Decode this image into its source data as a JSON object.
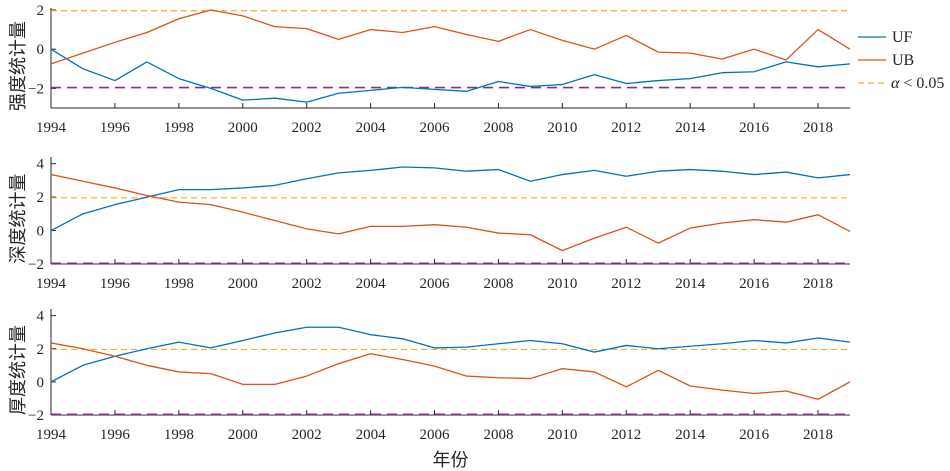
{
  "colors": {
    "uf_line": "#0072BD",
    "ub_line": "#D95319",
    "upper_threshold": "#EDB120",
    "lower_threshold": "#7E2F8E",
    "axis": "#262626"
  },
  "chart_data": [
    {
      "type": "line",
      "x": [
        1994,
        1995,
        1996,
        1997,
        1998,
        1999,
        2000,
        2001,
        2002,
        2003,
        2004,
        2005,
        2006,
        2007,
        2008,
        2009,
        2010,
        2011,
        2012,
        2013,
        2014,
        2015,
        2016,
        2017,
        2018,
        2019
      ],
      "xlim": [
        1994,
        2019
      ],
      "xticks": [
        1994,
        1996,
        1998,
        2000,
        2002,
        2004,
        2006,
        2008,
        2010,
        2012,
        2014,
        2016,
        2018
      ],
      "ylabel": "强度统计量",
      "ylim": [
        -3,
        2.1
      ],
      "yticks": [
        2,
        0,
        -2
      ],
      "ytick_labels": [
        "2",
        "0",
        "−2"
      ],
      "thresholds": {
        "upper": 1.96,
        "lower": -1.96
      },
      "grid": false,
      "legend": {
        "placement": "right",
        "threshold_label": "α < 0.05"
      },
      "series": [
        {
          "name": "UF",
          "values": [
            0,
            -1.0,
            -1.6,
            -0.65,
            -1.5,
            -2.0,
            -2.6,
            -2.5,
            -2.7,
            -2.25,
            -2.1,
            -1.95,
            -2.05,
            -2.15,
            -1.65,
            -1.9,
            -1.8,
            -1.3,
            -1.75,
            -1.6,
            -1.5,
            -1.2,
            -1.15,
            -0.65,
            -0.9,
            -0.75
          ]
        },
        {
          "name": "UB",
          "values": [
            -0.75,
            -0.2,
            0.35,
            0.85,
            1.55,
            2.0,
            1.7,
            1.15,
            1.05,
            0.5,
            1.0,
            0.85,
            1.15,
            0.75,
            0.4,
            1.0,
            0.45,
            0.0,
            0.7,
            -0.15,
            -0.2,
            -0.5,
            0.0,
            -0.55,
            1.0,
            0.0
          ]
        }
      ]
    },
    {
      "type": "line",
      "x": [
        1994,
        1995,
        1996,
        1997,
        1998,
        1999,
        2000,
        2001,
        2002,
        2003,
        2004,
        2005,
        2006,
        2007,
        2008,
        2009,
        2010,
        2011,
        2012,
        2013,
        2014,
        2015,
        2016,
        2017,
        2018,
        2019
      ],
      "xlim": [
        1994,
        2019
      ],
      "xticks": [
        1994,
        1996,
        1998,
        2000,
        2002,
        2004,
        2006,
        2008,
        2010,
        2012,
        2014,
        2016,
        2018
      ],
      "ylabel": "深度统计量",
      "ylim": [
        -2,
        4.4
      ],
      "yticks": [
        4,
        2,
        0,
        -2
      ],
      "ytick_labels": [
        "4",
        "2",
        "0",
        "−2"
      ],
      "thresholds": {
        "upper": 1.96,
        "lower": -1.96
      },
      "grid": false,
      "series": [
        {
          "name": "UF",
          "values": [
            0,
            1.0,
            1.55,
            2.0,
            2.45,
            2.45,
            2.55,
            2.7,
            3.1,
            3.45,
            3.6,
            3.8,
            3.75,
            3.55,
            3.65,
            2.95,
            3.35,
            3.6,
            3.25,
            3.55,
            3.65,
            3.55,
            3.35,
            3.5,
            3.15,
            3.35
          ]
        },
        {
          "name": "UB",
          "values": [
            3.35,
            2.95,
            2.55,
            2.1,
            1.7,
            1.55,
            1.1,
            0.6,
            0.1,
            -0.2,
            0.25,
            0.25,
            0.35,
            0.2,
            -0.15,
            -0.25,
            -1.2,
            -0.45,
            0.2,
            -0.75,
            0.15,
            0.45,
            0.65,
            0.5,
            0.95,
            -0.05
          ]
        }
      ]
    },
    {
      "type": "line",
      "x": [
        1994,
        1995,
        1996,
        1997,
        1998,
        1999,
        2000,
        2001,
        2002,
        2003,
        2004,
        2005,
        2006,
        2007,
        2008,
        2009,
        2010,
        2011,
        2012,
        2013,
        2014,
        2015,
        2016,
        2017,
        2018,
        2019
      ],
      "xlim": [
        1994,
        2019
      ],
      "xticks": [
        1994,
        1996,
        1998,
        2000,
        2002,
        2004,
        2006,
        2008,
        2010,
        2012,
        2014,
        2016,
        2018
      ],
      "xlabel": "年份",
      "ylabel": "厚度统计量",
      "ylim": [
        -2,
        4.4
      ],
      "yticks": [
        4,
        2,
        0,
        -2
      ],
      "ytick_labels": [
        "4",
        "2",
        "0",
        "−2"
      ],
      "thresholds": {
        "upper": 1.96,
        "lower": -1.96
      },
      "grid": false,
      "series": [
        {
          "name": "UF",
          "values": [
            0,
            1.0,
            1.55,
            2.0,
            2.4,
            2.05,
            2.5,
            2.95,
            3.3,
            3.3,
            2.85,
            2.6,
            2.05,
            2.1,
            2.3,
            2.5,
            2.3,
            1.8,
            2.2,
            2.0,
            2.15,
            2.3,
            2.5,
            2.35,
            2.65,
            2.4
          ]
        },
        {
          "name": "UB",
          "values": [
            2.35,
            2.0,
            1.55,
            1.0,
            0.6,
            0.5,
            -0.15,
            -0.15,
            0.35,
            1.1,
            1.7,
            1.35,
            0.95,
            0.35,
            0.25,
            0.2,
            0.8,
            0.6,
            -0.3,
            0.7,
            -0.25,
            -0.5,
            -0.7,
            -0.55,
            -1.05,
            0.0
          ]
        }
      ]
    }
  ]
}
